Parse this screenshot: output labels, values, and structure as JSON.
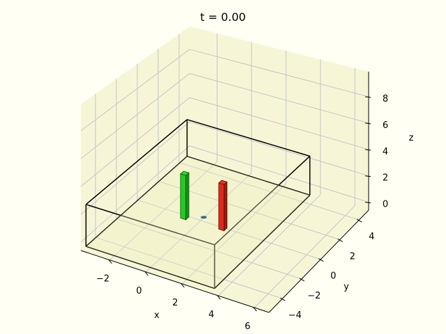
{
  "chart_data": {
    "type": "3d-bar",
    "title": "t = 0.00",
    "xlabel": "x",
    "ylabel": "y",
    "zlabel": "z",
    "xlim": [
      -3.6,
      6.8
    ],
    "ylim": [
      -5.4,
      5.0
    ],
    "zlim": [
      -0.6,
      9.9
    ],
    "xticks": [
      "-2",
      "0",
      "2",
      "4",
      "6"
    ],
    "yticks": [
      "-4",
      "-2",
      "0",
      "2",
      "4"
    ],
    "zticks": [
      "0",
      "2",
      "4",
      "6",
      "8"
    ],
    "grid": true,
    "box": {
      "x": [
        -3.2,
        3.9
      ],
      "y": [
        -5.6,
        4.1
      ],
      "z": [
        0,
        3
      ],
      "edge_color": "#000000"
    },
    "bars": [
      {
        "x": [
          -0.6,
          -0.3
        ],
        "y": [
          -0.95,
          -0.65
        ],
        "z": [
          0,
          3.3
        ],
        "color": "#22cc22"
      },
      {
        "x": [
          1.5,
          1.8
        ],
        "y": [
          -0.85,
          -0.55
        ],
        "z": [
          0,
          3.4
        ],
        "color": "#dd2a1a"
      }
    ],
    "points": [
      {
        "x": 0.34,
        "y": -0.3,
        "z": 0,
        "color": "#2d6d8d"
      }
    ]
  },
  "colors": {
    "pane": "#f6f6d6",
    "grid": "#c4c4cc",
    "background": "#fffff4"
  }
}
